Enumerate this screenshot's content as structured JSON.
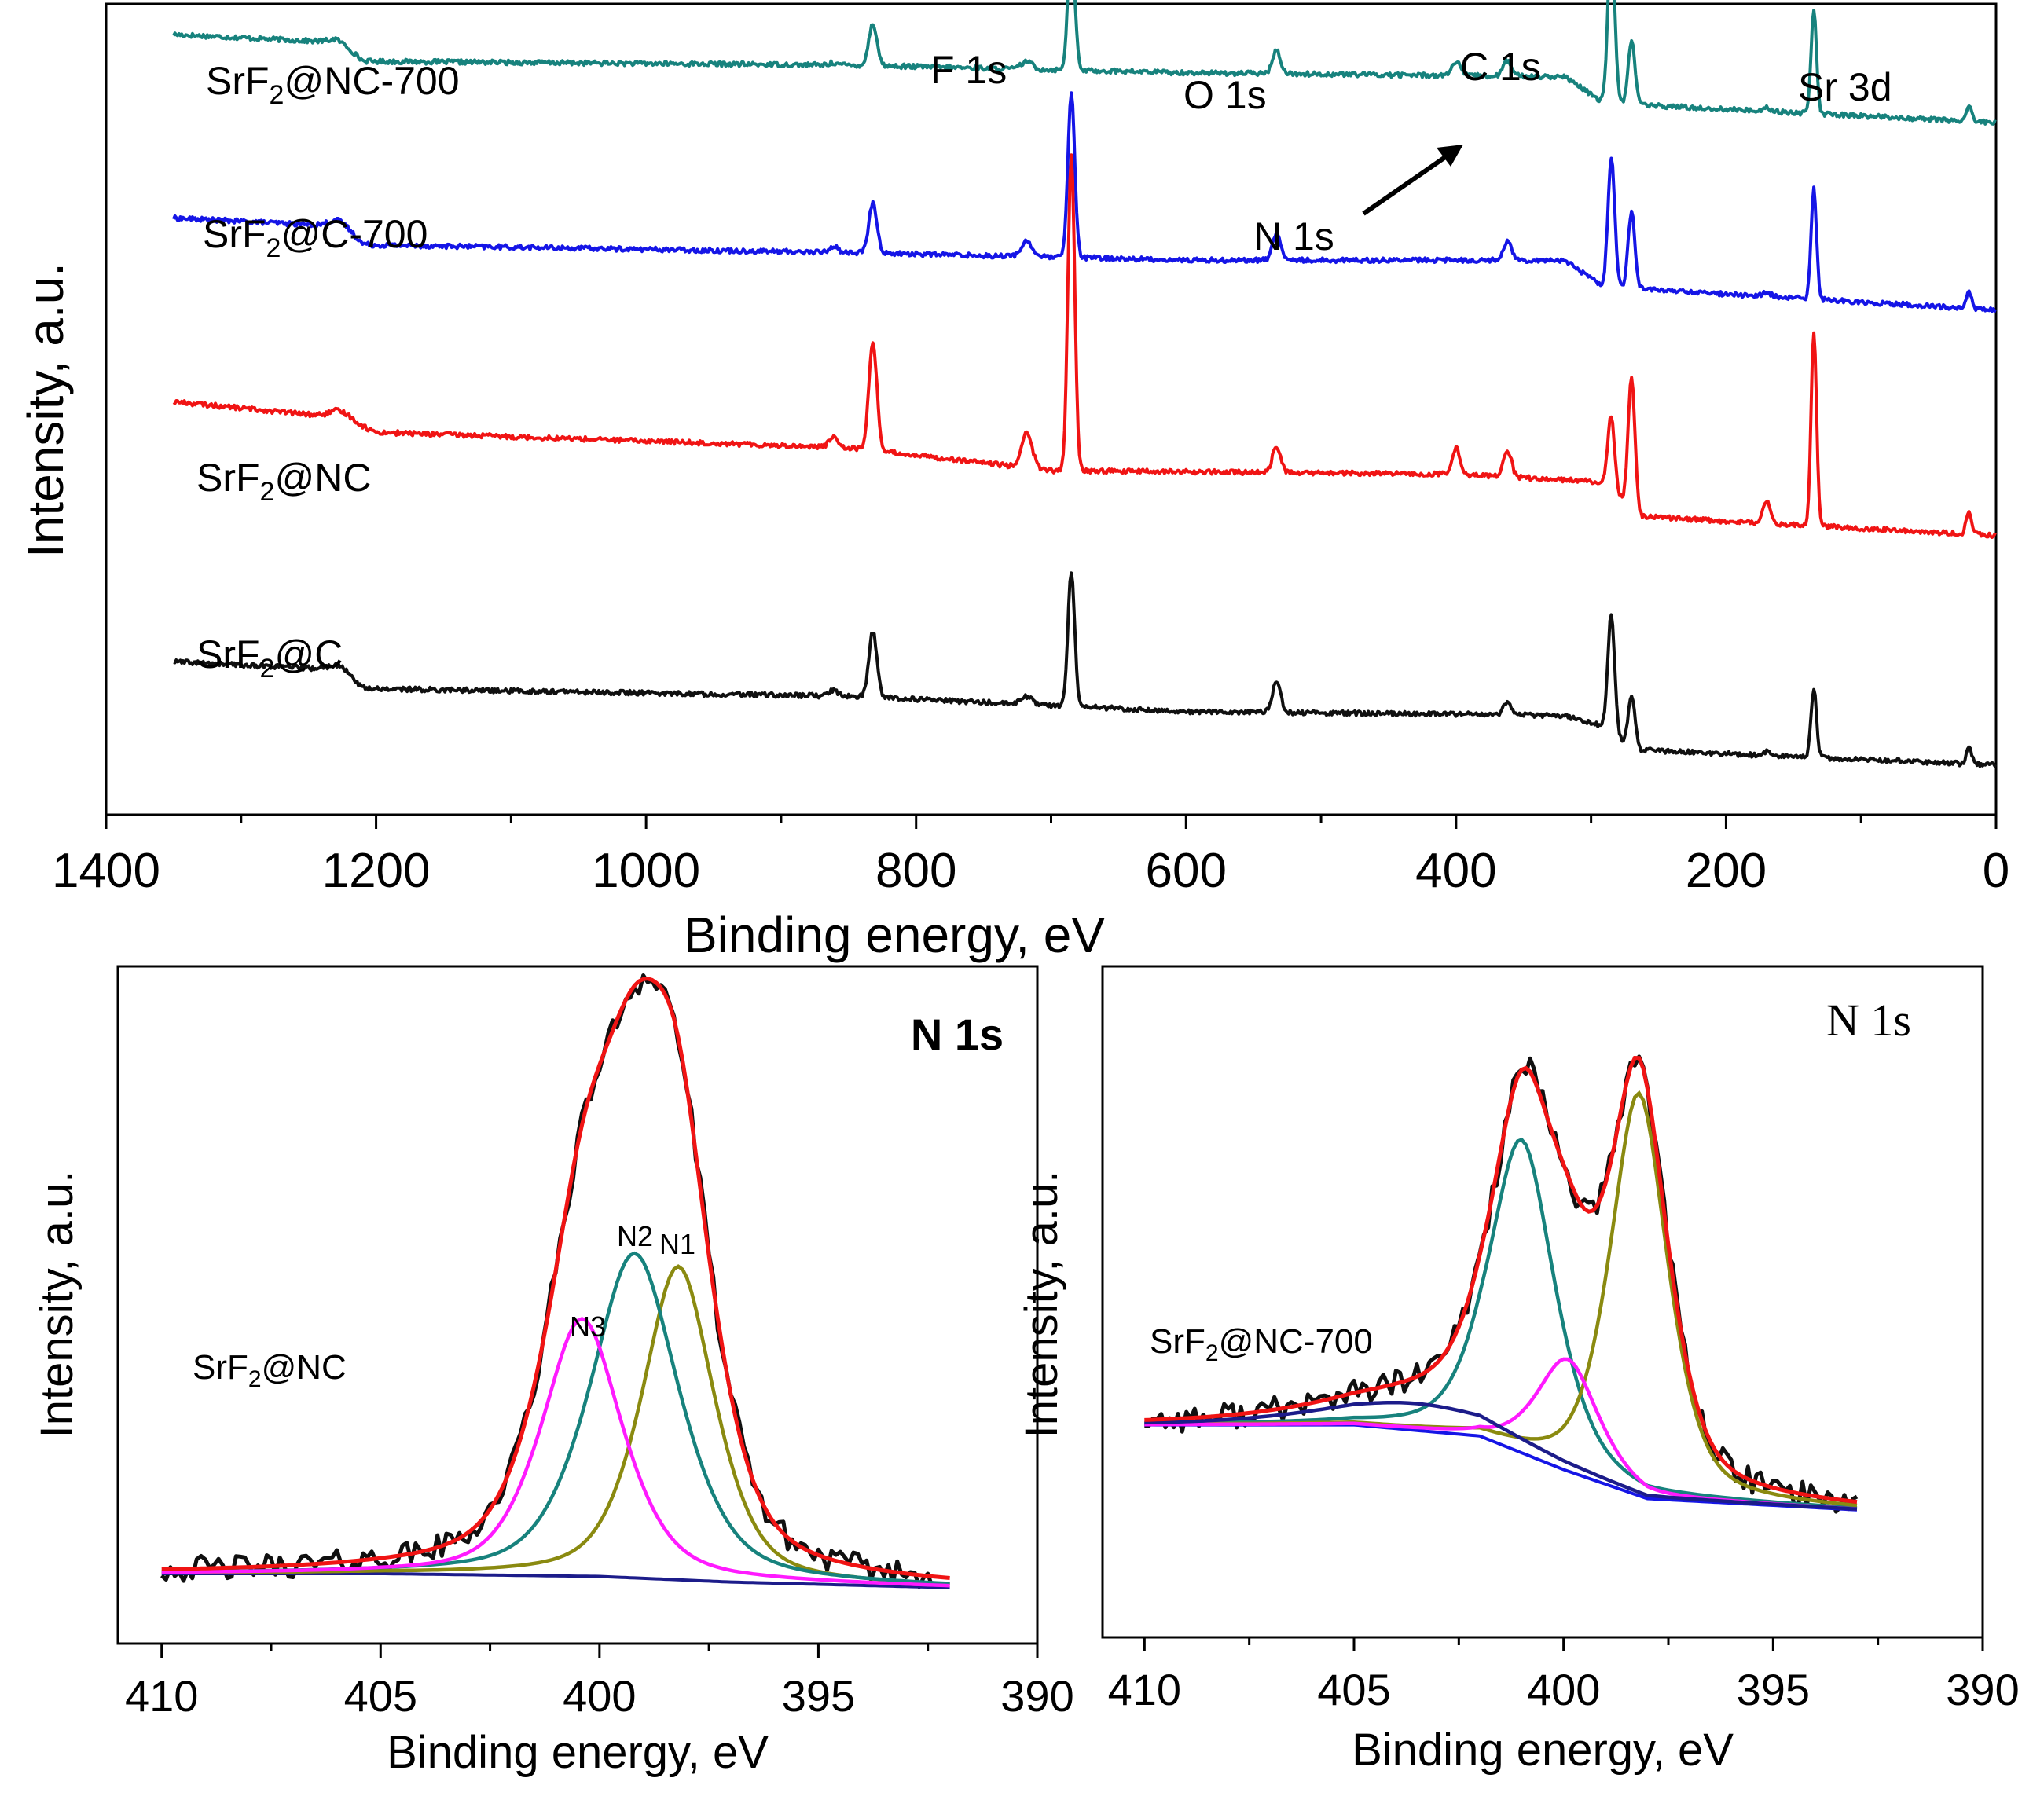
{
  "chart_data": [
    {
      "id": "survey",
      "type": "line",
      "title": "",
      "xlabel": "Binding energy, eV",
      "ylabel": "Intensity, a.u.",
      "xlim": [
        1400,
        0
      ],
      "xticks": [
        1400,
        1200,
        1000,
        800,
        600,
        400,
        200,
        0
      ],
      "xtick_labels": [
        "1400",
        "1200",
        "1000",
        "800",
        "600",
        "400",
        "200",
        "0"
      ],
      "ylim": [
        -0.6,
        10.0
      ],
      "x_range": [
        1350,
        0
      ],
      "peaks": [
        {
          "center": 1225,
          "width": 8
        },
        {
          "center": 861,
          "width": 3
        },
        {
          "center": 832,
          "width": 3
        },
        {
          "center": 718,
          "width": 4
        },
        {
          "center": 685,
          "width": 2.5
        },
        {
          "center": 533,
          "width": 3
        },
        {
          "center": 400,
          "width": 3
        },
        {
          "center": 362,
          "width": 3
        },
        {
          "center": 285,
          "width": 2.5
        },
        {
          "center": 270,
          "width": 2.5
        },
        {
          "center": 170,
          "width": 3
        },
        {
          "center": 135,
          "width": 2
        },
        {
          "center": 20,
          "width": 2
        }
      ],
      "series": [
        {
          "name": "SrF2@NC-700",
          "color": "#17827d",
          "offset": 8.0,
          "baseline": [
            [
              1350,
              1.6
            ],
            [
              1230,
              1.5
            ],
            [
              1210,
              1.25
            ],
            [
              850,
              1.2
            ],
            [
              600,
              1.1
            ],
            [
              320,
              1.05
            ],
            [
              290,
              0.7
            ],
            [
              0,
              0.45
            ]
          ],
          "amps": [
            0.05,
            0.03,
            0.55,
            0.1,
            1.75,
            0.3,
            0.18,
            0.2,
            2.15,
            0.85,
            0.05,
            1.35,
            0.2
          ]
        },
        {
          "name": "SrF2@C-700",
          "color": "#1515e6",
          "offset": 5.6,
          "baseline": [
            [
              1350,
              1.6
            ],
            [
              1230,
              1.5
            ],
            [
              1210,
              1.25
            ],
            [
              850,
              1.15
            ],
            [
              600,
              1.05
            ],
            [
              320,
              1.05
            ],
            [
              290,
              0.7
            ],
            [
              0,
              0.4
            ]
          ],
          "amps": [
            0.1,
            0.08,
            0.65,
            0.2,
            2.15,
            0.35,
            0.0,
            0.25,
            1.7,
            1.0,
            0.05,
            1.45,
            0.2
          ]
        },
        {
          "name": "SrF2@NC",
          "color": "#f01414",
          "offset": 2.5,
          "baseline": [
            [
              1350,
              2.3
            ],
            [
              1230,
              2.1
            ],
            [
              1200,
              1.9
            ],
            [
              850,
              1.7
            ],
            [
              700,
              1.4
            ],
            [
              400,
              1.35
            ],
            [
              290,
              1.25
            ],
            [
              265,
              0.8
            ],
            [
              0,
              0.55
            ]
          ],
          "amps": [
            0.1,
            0.15,
            1.4,
            0.45,
            4.1,
            0.35,
            0.35,
            0.35,
            0.95,
            1.75,
            0.3,
            2.55,
            0.3
          ]
        },
        {
          "name": "SrF2@C",
          "color": "#101010",
          "offset": 0.0,
          "baseline": [
            [
              1350,
              1.4
            ],
            [
              1230,
              1.3
            ],
            [
              1210,
              1.05
            ],
            [
              850,
              0.95
            ],
            [
              600,
              0.75
            ],
            [
              320,
              0.7
            ],
            [
              290,
              0.55
            ],
            [
              270,
              0.25
            ],
            [
              0,
              0.05
            ]
          ],
          "amps": [
            0.08,
            0.08,
            0.85,
            0.1,
            1.75,
            0.4,
            0.0,
            0.15,
            1.55,
            0.7,
            0.05,
            0.9,
            0.2
          ]
        }
      ],
      "labels": {
        "sample_names": {
          "nc700": {
            "main": "SrF",
            "sub": "2",
            "rest": "@NC-700"
          },
          "c700": {
            "main": "SrF",
            "sub": "2",
            "rest": "@C-700"
          },
          "nc": {
            "main": "SrF",
            "sub": "2",
            "rest": "@NC"
          },
          "c": {
            "main": "SrF",
            "sub": "2",
            "rest": "@C"
          }
        },
        "peak_labels": [
          "F 1s",
          "O 1s",
          "C 1s",
          "Sr 3d",
          "N 1s"
        ]
      }
    },
    {
      "id": "n1s_nc",
      "type": "line",
      "title": "N 1s",
      "sample": {
        "main": "SrF",
        "sub": "2",
        "rest": "@NC"
      },
      "xlabel": "Binding energy, eV",
      "ylabel": "Intensity, a.u.",
      "xlim": [
        411,
        390
      ],
      "xticks": [
        410,
        405,
        400,
        395,
        390
      ],
      "xtick_labels": [
        "410",
        "405",
        "400",
        "395",
        "390"
      ],
      "ylim": [
        -0.22,
        2.2
      ],
      "x_range": [
        410,
        392
      ],
      "background": [
        [
          410,
          0.03
        ],
        [
          405,
          0.03
        ],
        [
          400,
          0.02
        ],
        [
          397,
          0.0
        ],
        [
          392,
          -0.02
        ]
      ],
      "components": [
        {
          "name": "N1",
          "label": "N1",
          "center": 398.2,
          "height": 1.12,
          "width": 0.9,
          "color": "#8a8a10"
        },
        {
          "name": "N2",
          "label": "N2",
          "center": 399.2,
          "height": 1.16,
          "width": 1.1,
          "color": "#17827d"
        },
        {
          "name": "N3",
          "label": "N3",
          "center": 400.4,
          "height": 0.92,
          "width": 1.0,
          "color": "#ff1aff"
        }
      ],
      "envelope_color": "#f01414",
      "background_color": "#1c1c8a",
      "raw_color": "#101010"
    },
    {
      "id": "n1s_nc700",
      "type": "line",
      "title": "N 1s",
      "sample": {
        "main": "SrF",
        "sub": "2",
        "rest": "@NC-700"
      },
      "xlabel": "Binding energy, eV",
      "ylabel": "Intensity, a.u.",
      "xlim": [
        411,
        390
      ],
      "xticks": [
        410,
        405,
        400,
        395,
        390
      ],
      "xtick_labels": [
        "410",
        "405",
        "400",
        "395",
        "390"
      ],
      "ylim": [
        -0.9,
        2.1
      ],
      "x_range": [
        410,
        393
      ],
      "background": [
        [
          410,
          0.05
        ],
        [
          405,
          0.05
        ],
        [
          402,
          0.0
        ],
        [
          400,
          -0.15
        ],
        [
          398,
          -0.28
        ],
        [
          393,
          -0.33
        ]
      ],
      "components": [
        {
          "name": "N-a",
          "center": 401.0,
          "height": 1.4,
          "width": 0.85,
          "color": "#17827d"
        },
        {
          "name": "N-b",
          "center": 398.2,
          "height": 1.8,
          "width": 0.75,
          "color": "#8a8a10"
        },
        {
          "name": "N-c",
          "center": 399.9,
          "height": 0.5,
          "width": 0.8,
          "color": "#ff1aff"
        },
        {
          "name": "N-d",
          "center": 403.5,
          "height": 0.12,
          "width": 2.4,
          "color": "#1c1c8a"
        }
      ],
      "envelope_color": "#f01414",
      "background_color": "#1515e6",
      "raw_color": "#101010"
    }
  ]
}
